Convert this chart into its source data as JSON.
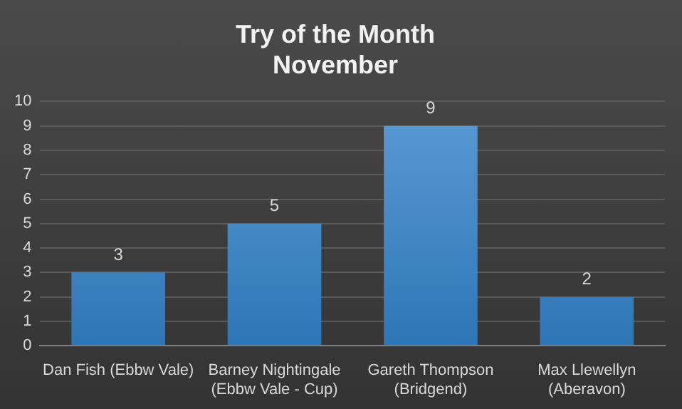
{
  "chart_data": {
    "type": "bar",
    "title": "Try of the Month",
    "subtitle": "November",
    "categories": [
      "Dan Fish (Ebbw Vale)",
      "Barney Nightingale (Ebbw Vale - Cup)",
      "Gareth Thompson (Bridgend)",
      "Max Llewellyn (Aberavon)"
    ],
    "values": [
      3,
      5,
      9,
      2
    ],
    "color": "#5b9bd5",
    "ylim": [
      0,
      10
    ],
    "yticks": [
      0,
      1,
      2,
      3,
      4,
      5,
      6,
      7,
      8,
      9,
      10
    ],
    "grid": "y",
    "data_labels": true
  }
}
